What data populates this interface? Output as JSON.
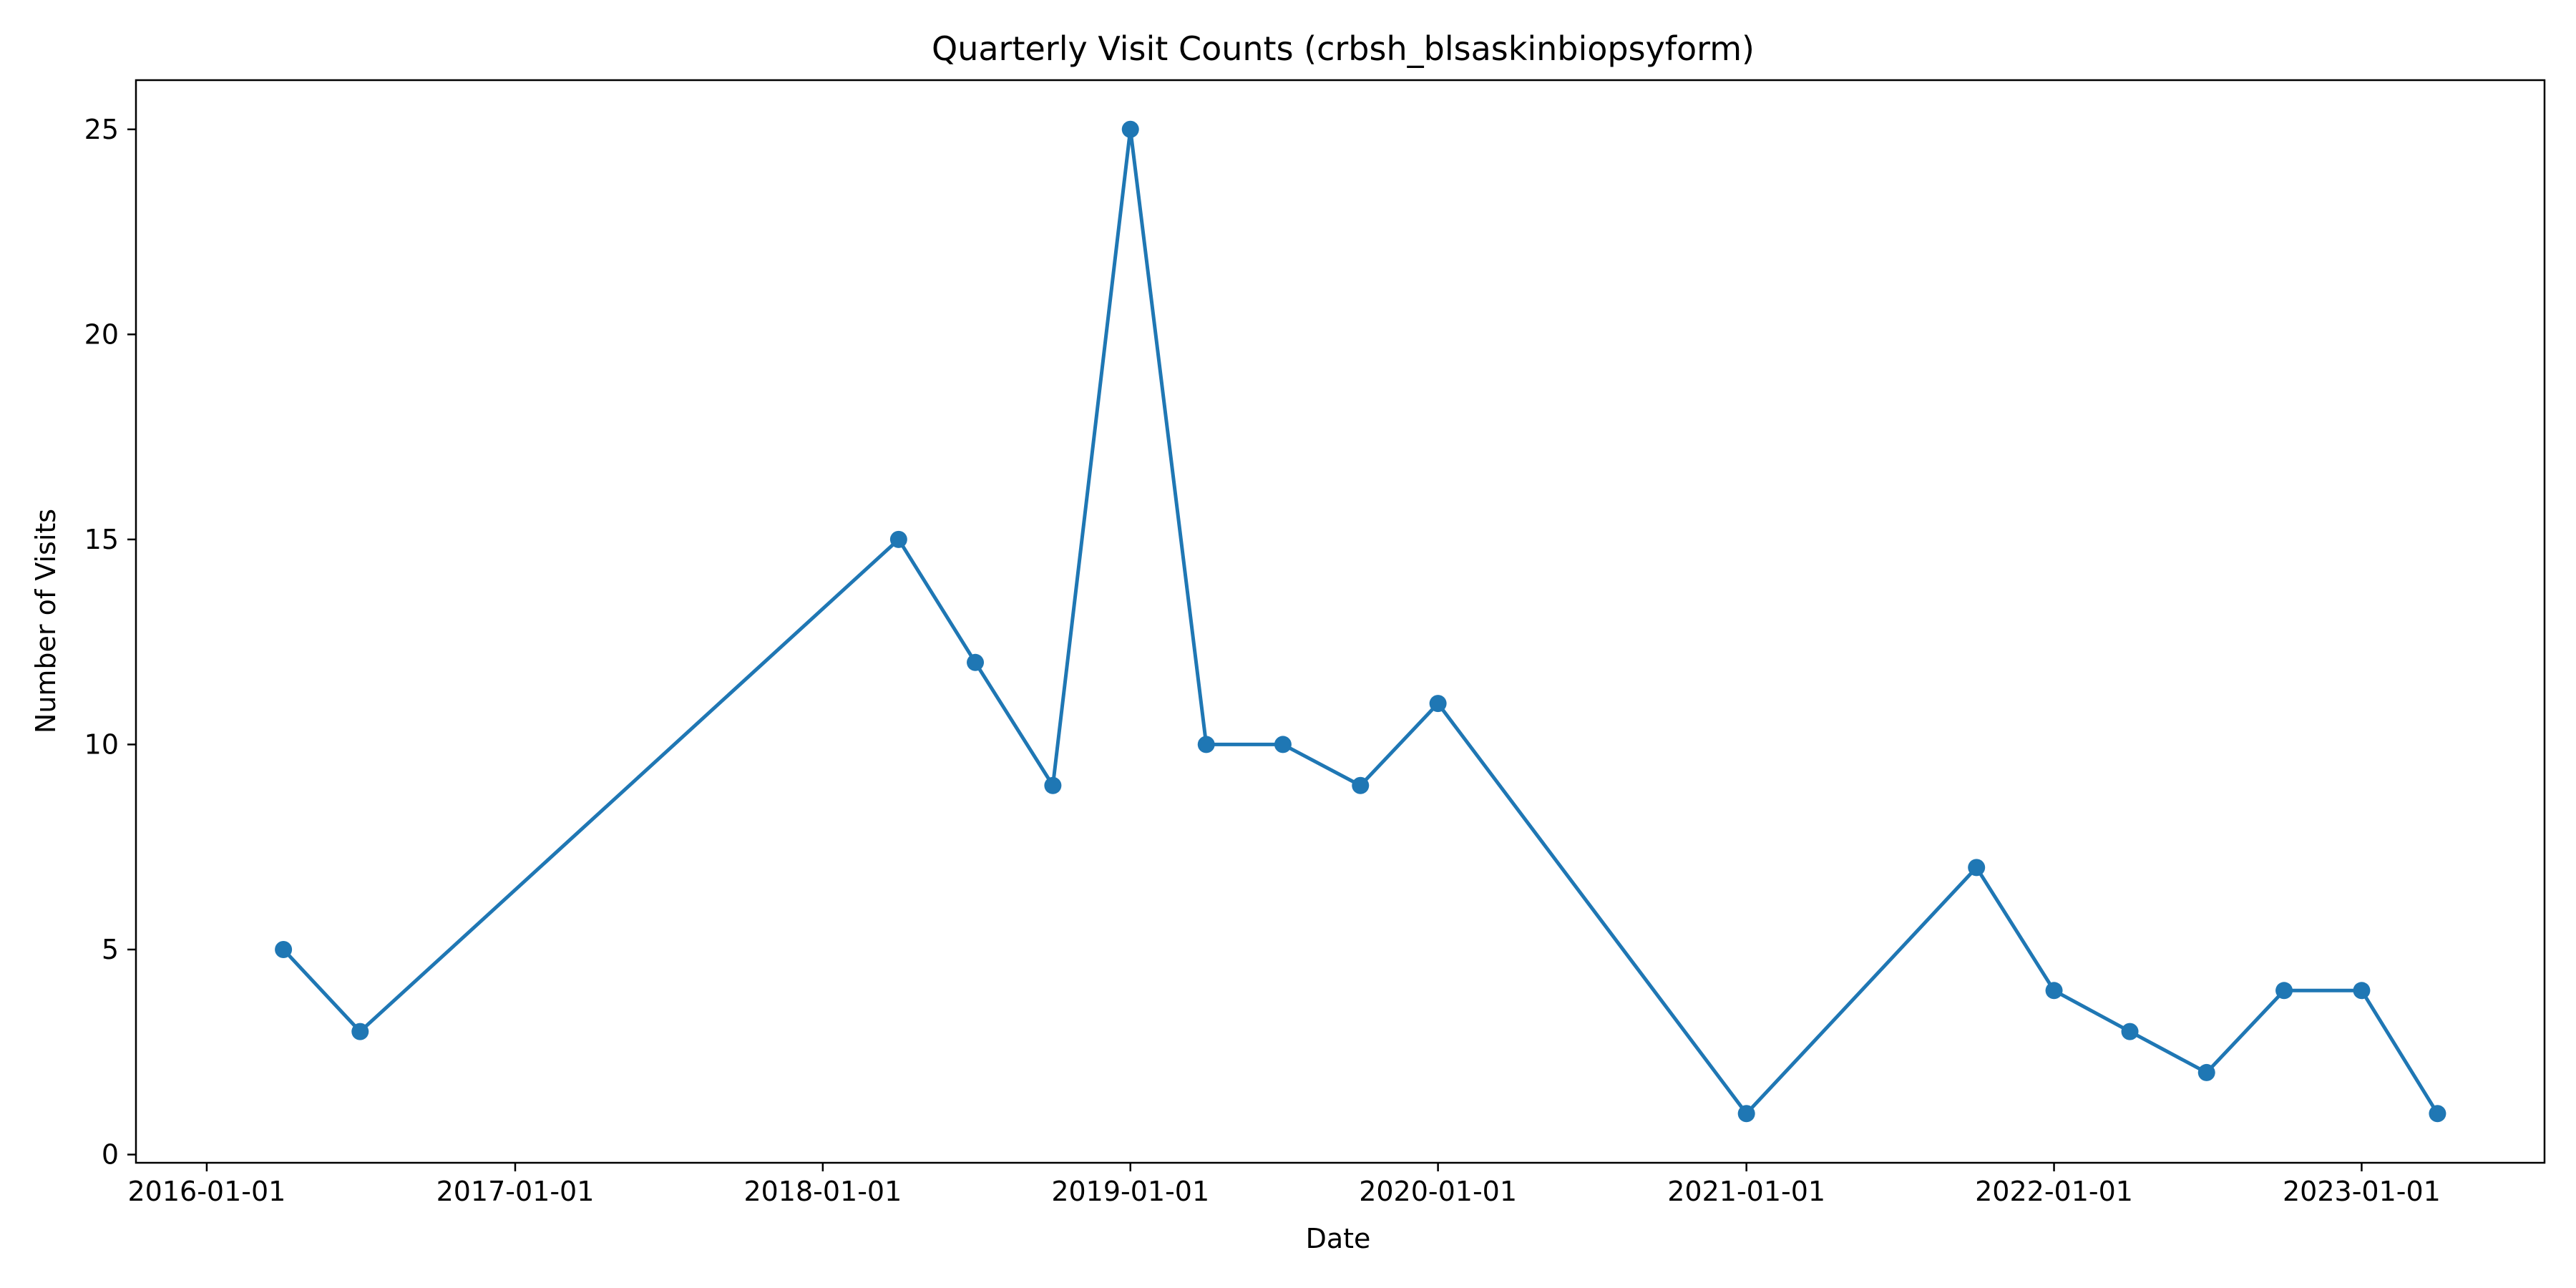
{
  "chart_data": {
    "type": "line",
    "title": "Quarterly Visit Counts (crbsh_blsaskinbiopsyform)",
    "xlabel": "Date",
    "ylabel": "Number of Visits",
    "x_is_date": true,
    "xlim": [
      "2015-10-09",
      "2023-08-06"
    ],
    "ylim": [
      -0.2,
      26.2
    ],
    "grid": false,
    "legend": "none",
    "x_ticks": [
      "2016-01-01",
      "2017-01-01",
      "2018-01-01",
      "2019-01-01",
      "2020-01-01",
      "2021-01-01",
      "2022-01-01",
      "2023-01-01"
    ],
    "y_ticks": [
      0,
      5,
      10,
      15,
      20,
      25
    ],
    "series": [
      {
        "color": "#1f77b4",
        "marker": "circle",
        "x": [
          "2016-04-01",
          "2016-07-01",
          "2018-04-01",
          "2018-07-01",
          "2018-10-01",
          "2019-01-01",
          "2019-04-01",
          "2019-07-01",
          "2019-10-01",
          "2020-01-01",
          "2021-01-01",
          "2021-10-01",
          "2022-01-01",
          "2022-04-01",
          "2022-07-01",
          "2022-10-01",
          "2023-01-01",
          "2023-04-01"
        ],
        "y": [
          5,
          3,
          15,
          12,
          9,
          25,
          10,
          10,
          9,
          11,
          1,
          7,
          4,
          3,
          2,
          4,
          4,
          1
        ]
      }
    ]
  }
}
